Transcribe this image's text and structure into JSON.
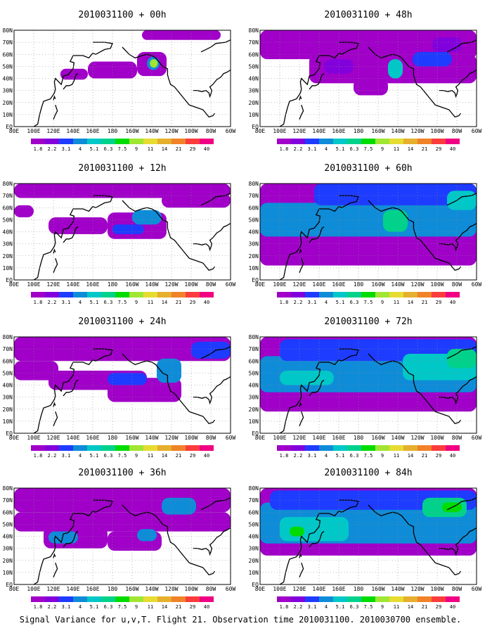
{
  "chart_data": {
    "type": "heatmap",
    "panel_titles": [
      "2010031100 + 00h",
      "2010031100 + 48h",
      "2010031100 + 12h",
      "2010031100 + 60h",
      "2010031100 + 24h",
      "2010031100 + 72h",
      "2010031100 + 36h",
      "2010031100 + 84h"
    ],
    "lon_ticks": [
      "80E",
      "100E",
      "120E",
      "140E",
      "160E",
      "180",
      "160W",
      "140W",
      "120W",
      "100W",
      "80W",
      "60W"
    ],
    "lat_ticks": [
      "EQ",
      "10N",
      "20N",
      "30N",
      "40N",
      "50N",
      "60N",
      "70N",
      "80N"
    ],
    "lon_range_deg_east": [
      80,
      300
    ],
    "lat_range_deg_north": [
      0,
      80
    ],
    "grid": "dotted",
    "colorbar": {
      "levels": [
        "1.8",
        "2.2",
        "3.1",
        "4",
        "5.1",
        "6.3",
        "7.5",
        "9",
        "11",
        "14",
        "21",
        "29",
        "40"
      ],
      "colors": [
        "#a000c8",
        "#8200dc",
        "#1e3cff",
        "#0f8cd8",
        "#00c8c8",
        "#00d28c",
        "#00dc00",
        "#a0e632",
        "#e6dc32",
        "#e6af2d",
        "#f08228",
        "#fa3c3c",
        "#f00082"
      ]
    },
    "caption": "Signal Variance for u,v,T. Flight 21. Observation time 2010031100. 2010030700 ensemble.",
    "variance_regions": [
      [
        {
          "lon": [
            127,
            155
          ],
          "lat": [
            39,
            48
          ],
          "level": 0
        },
        {
          "lon": [
            155,
            205
          ],
          "lat": [
            40,
            54
          ],
          "level": 0
        },
        {
          "lon": [
            205,
            235
          ],
          "lat": [
            42,
            62
          ],
          "level": 0
        },
        {
          "lon": [
            215,
            228
          ],
          "lat": [
            47,
            58
          ],
          "level": 3
        },
        {
          "lon": [
            218,
            226
          ],
          "lat": [
            49,
            56
          ],
          "level": 7
        },
        {
          "lon": [
            210,
            290
          ],
          "lat": [
            72,
            80
          ],
          "level": 0
        }
      ],
      [
        {
          "lon": [
            80,
            300
          ],
          "lat": [
            56,
            80
          ],
          "level": 0
        },
        {
          "lon": [
            130,
            300
          ],
          "lat": [
            36,
            60
          ],
          "level": 0
        },
        {
          "lon": [
            175,
            210
          ],
          "lat": [
            26,
            40
          ],
          "level": 0
        },
        {
          "lon": [
            145,
            175
          ],
          "lat": [
            44,
            56
          ],
          "level": 1
        },
        {
          "lon": [
            210,
            225
          ],
          "lat": [
            40,
            56
          ],
          "level": 4
        },
        {
          "lon": [
            235,
            275
          ],
          "lat": [
            50,
            62
          ],
          "level": 2
        },
        {
          "lon": [
            255,
            285
          ],
          "lat": [
            62,
            74
          ],
          "level": 1
        }
      ],
      [
        {
          "lon": [
            80,
            300
          ],
          "lat": [
            68,
            80
          ],
          "level": 0
        },
        {
          "lon": [
            80,
            100
          ],
          "lat": [
            52,
            62
          ],
          "level": 0
        },
        {
          "lon": [
            115,
            175
          ],
          "lat": [
            38,
            52
          ],
          "level": 0
        },
        {
          "lon": [
            175,
            235
          ],
          "lat": [
            34,
            56
          ],
          "level": 0
        },
        {
          "lon": [
            200,
            230
          ],
          "lat": [
            46,
            58
          ],
          "level": 3
        },
        {
          "lon": [
            180,
            212
          ],
          "lat": [
            38,
            46
          ],
          "level": 2
        },
        {
          "lon": [
            230,
            300
          ],
          "lat": [
            60,
            72
          ],
          "level": 0
        }
      ],
      [
        {
          "lon": [
            80,
            300
          ],
          "lat": [
            12,
            80
          ],
          "level": 0
        },
        {
          "lon": [
            80,
            300
          ],
          "lat": [
            36,
            64
          ],
          "level": 3
        },
        {
          "lon": [
            135,
            300
          ],
          "lat": [
            62,
            80
          ],
          "level": 2
        },
        {
          "lon": [
            205,
            230
          ],
          "lat": [
            40,
            58
          ],
          "level": 5
        },
        {
          "lon": [
            270,
            300
          ],
          "lat": [
            58,
            74
          ],
          "level": 4
        },
        {
          "lon": [
            140,
            165
          ],
          "lat": [
            46,
            58
          ],
          "level": 3
        }
      ],
      [
        {
          "lon": [
            80,
            300
          ],
          "lat": [
            60,
            80
          ],
          "level": 0
        },
        {
          "lon": [
            80,
            125
          ],
          "lat": [
            44,
            60
          ],
          "level": 0
        },
        {
          "lon": [
            115,
            215
          ],
          "lat": [
            36,
            52
          ],
          "level": 0
        },
        {
          "lon": [
            175,
            250
          ],
          "lat": [
            26,
            46
          ],
          "level": 0
        },
        {
          "lon": [
            225,
            250
          ],
          "lat": [
            42,
            62
          ],
          "level": 3
        },
        {
          "lon": [
            175,
            215
          ],
          "lat": [
            40,
            50
          ],
          "level": 2
        },
        {
          "lon": [
            260,
            300
          ],
          "lat": [
            62,
            76
          ],
          "level": 2
        }
      ],
      [
        {
          "lon": [
            80,
            300
          ],
          "lat": [
            18,
            80
          ],
          "level": 0
        },
        {
          "lon": [
            80,
            300
          ],
          "lat": [
            34,
            64
          ],
          "level": 3
        },
        {
          "lon": [
            100,
            300
          ],
          "lat": [
            60,
            78
          ],
          "level": 2
        },
        {
          "lon": [
            100,
            155
          ],
          "lat": [
            40,
            52
          ],
          "level": 4
        },
        {
          "lon": [
            225,
            300
          ],
          "lat": [
            44,
            66
          ],
          "level": 4
        },
        {
          "lon": [
            270,
            300
          ],
          "lat": [
            54,
            70
          ],
          "level": 5
        }
      ],
      [
        {
          "lon": [
            80,
            300
          ],
          "lat": [
            60,
            80
          ],
          "level": 0
        },
        {
          "lon": [
            80,
            300
          ],
          "lat": [
            44,
            60
          ],
          "level": 0
        },
        {
          "lon": [
            110,
            175
          ],
          "lat": [
            30,
            48
          ],
          "level": 0
        },
        {
          "lon": [
            175,
            230
          ],
          "lat": [
            28,
            44
          ],
          "level": 0
        },
        {
          "lon": [
            115,
            145
          ],
          "lat": [
            34,
            44
          ],
          "level": 3
        },
        {
          "lon": [
            205,
            225
          ],
          "lat": [
            36,
            46
          ],
          "level": 3
        },
        {
          "lon": [
            230,
            265
          ],
          "lat": [
            58,
            72
          ],
          "level": 3
        }
      ],
      [
        {
          "lon": [
            80,
            300
          ],
          "lat": [
            24,
            80
          ],
          "level": 0
        },
        {
          "lon": [
            80,
            300
          ],
          "lat": [
            34,
            68
          ],
          "level": 3
        },
        {
          "lon": [
            90,
            300
          ],
          "lat": [
            62,
            78
          ],
          "level": 2
        },
        {
          "lon": [
            100,
            170
          ],
          "lat": [
            36,
            56
          ],
          "level": 4
        },
        {
          "lon": [
            110,
            125
          ],
          "lat": [
            40,
            48
          ],
          "level": 6
        },
        {
          "lon": [
            245,
            290
          ],
          "lat": [
            56,
            72
          ],
          "level": 5
        },
        {
          "lon": [
            265,
            285
          ],
          "lat": [
            60,
            68
          ],
          "level": 6
        }
      ]
    ]
  }
}
